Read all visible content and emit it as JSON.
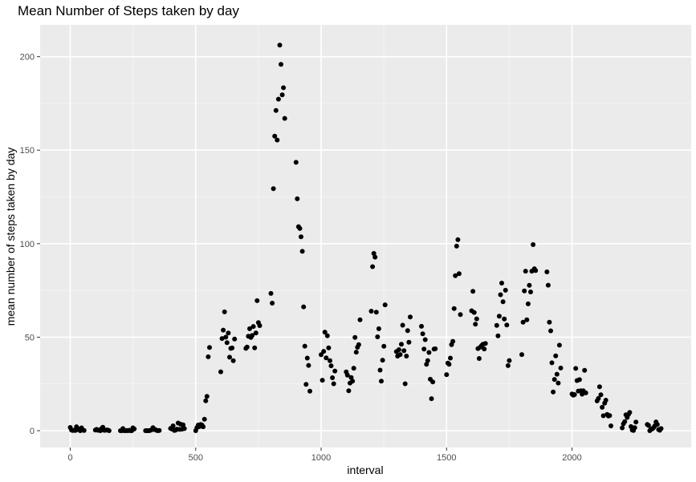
{
  "chart_data": {
    "type": "scatter",
    "title": "Mean Number of Steps taken by day",
    "xlabel": "interval",
    "ylabel": "mean number of steps taken by day",
    "xlim": [
      -120,
      2475
    ],
    "ylim": [
      -9,
      217
    ],
    "x_ticks": [
      0,
      500,
      1000,
      1500,
      2000
    ],
    "y_ticks": [
      0,
      50,
      100,
      150,
      200
    ],
    "x_tick_labels": [
      "0",
      "500",
      "1000",
      "1500",
      "2000"
    ],
    "y_tick_labels": [
      "0",
      "50",
      "100",
      "150",
      "200"
    ],
    "grid": true,
    "panel_color": "#ebebeb",
    "point_color": "#000000",
    "points": [
      [
        0,
        1.7
      ],
      [
        5,
        0.3
      ],
      [
        10,
        0.1
      ],
      [
        15,
        0.2
      ],
      [
        20,
        0.1
      ],
      [
        25,
        2.1
      ],
      [
        30,
        0.5
      ],
      [
        35,
        0.9
      ],
      [
        40,
        0
      ],
      [
        45,
        1.5
      ],
      [
        50,
        0.3
      ],
      [
        55,
        0.1
      ],
      [
        100,
        0.3
      ],
      [
        105,
        0.7
      ],
      [
        110,
        0.2
      ],
      [
        115,
        0.3
      ],
      [
        120,
        0
      ],
      [
        125,
        1.1
      ],
      [
        130,
        1.8
      ],
      [
        135,
        0.2
      ],
      [
        140,
        0.2
      ],
      [
        145,
        0.4
      ],
      [
        150,
        0.3
      ],
      [
        155,
        0
      ],
      [
        200,
        0
      ],
      [
        205,
        0
      ],
      [
        210,
        1.1
      ],
      [
        215,
        0
      ],
      [
        220,
        0
      ],
      [
        225,
        0.1
      ],
      [
        230,
        0
      ],
      [
        235,
        0.2
      ],
      [
        240,
        0
      ],
      [
        245,
        0
      ],
      [
        250,
        1.5
      ],
      [
        255,
        0.9
      ],
      [
        300,
        0
      ],
      [
        305,
        0
      ],
      [
        310,
        0
      ],
      [
        315,
        0
      ],
      [
        320,
        0.2
      ],
      [
        325,
        0.6
      ],
      [
        330,
        1.6
      ],
      [
        335,
        0.6
      ],
      [
        340,
        0.5
      ],
      [
        345,
        0.1
      ],
      [
        350,
        0
      ],
      [
        355,
        0.1
      ],
      [
        400,
        1.2
      ],
      [
        405,
        0.9
      ],
      [
        410,
        2.6
      ],
      [
        415,
        0.1
      ],
      [
        420,
        0.3
      ],
      [
        425,
        0.8
      ],
      [
        430,
        4.1
      ],
      [
        435,
        0.7
      ],
      [
        440,
        3.5
      ],
      [
        445,
        0.8
      ],
      [
        450,
        3.1
      ],
      [
        455,
        1.1
      ],
      [
        500,
        0
      ],
      [
        505,
        1.6
      ],
      [
        510,
        3
      ],
      [
        515,
        2.2
      ],
      [
        520,
        3.3
      ],
      [
        525,
        3
      ],
      [
        530,
        2.1
      ],
      [
        535,
        6.1
      ],
      [
        540,
        16
      ],
      [
        545,
        18.3
      ],
      [
        550,
        39.5
      ],
      [
        555,
        44.5
      ],
      [
        600,
        31.5
      ],
      [
        605,
        49.3
      ],
      [
        610,
        53.8
      ],
      [
        615,
        63.5
      ],
      [
        620,
        50
      ],
      [
        625,
        47.1
      ],
      [
        630,
        52.2
      ],
      [
        635,
        39.3
      ],
      [
        640,
        44
      ],
      [
        645,
        44.2
      ],
      [
        650,
        37.4
      ],
      [
        655,
        49
      ],
      [
        700,
        44
      ],
      [
        705,
        44.7
      ],
      [
        710,
        50.5
      ],
      [
        715,
        54.5
      ],
      [
        720,
        49.9
      ],
      [
        725,
        50.9
      ],
      [
        730,
        55.7
      ],
      [
        735,
        44.3
      ],
      [
        740,
        52.3
      ],
      [
        745,
        69.5
      ],
      [
        750,
        57.8
      ],
      [
        755,
        56.2
      ],
      [
        800,
        73.4
      ],
      [
        805,
        68.2
      ],
      [
        810,
        129.4
      ],
      [
        815,
        157.5
      ],
      [
        820,
        171.2
      ],
      [
        825,
        155.4
      ],
      [
        830,
        177.3
      ],
      [
        835,
        206.2
      ],
      [
        840,
        195.9
      ],
      [
        845,
        179.6
      ],
      [
        850,
        183.4
      ],
      [
        855,
        167
      ],
      [
        900,
        143.5
      ],
      [
        905,
        124
      ],
      [
        910,
        109.1
      ],
      [
        915,
        108.1
      ],
      [
        920,
        103.7
      ],
      [
        925,
        95.9
      ],
      [
        930,
        66.2
      ],
      [
        935,
        45.2
      ],
      [
        940,
        24.8
      ],
      [
        945,
        38.8
      ],
      [
        950,
        34.9
      ],
      [
        955,
        21.1
      ],
      [
        1000,
        40.6
      ],
      [
        1005,
        27
      ],
      [
        1010,
        42.4
      ],
      [
        1015,
        52.7
      ],
      [
        1020,
        38.9
      ],
      [
        1025,
        50.8
      ],
      [
        1030,
        44.3
      ],
      [
        1035,
        37.4
      ],
      [
        1040,
        34.7
      ],
      [
        1045,
        28.3
      ],
      [
        1050,
        25.1
      ],
      [
        1055,
        31.9
      ],
      [
        1100,
        31.4
      ],
      [
        1105,
        29.7
      ],
      [
        1110,
        21.3
      ],
      [
        1115,
        25.5
      ],
      [
        1120,
        28.4
      ],
      [
        1125,
        26.5
      ],
      [
        1130,
        33.4
      ],
      [
        1135,
        49.9
      ],
      [
        1140,
        42
      ],
      [
        1145,
        44.6
      ],
      [
        1150,
        46
      ],
      [
        1155,
        59.3
      ],
      [
        1200,
        63.9
      ],
      [
        1205,
        87.7
      ],
      [
        1210,
        94.8
      ],
      [
        1215,
        92.8
      ],
      [
        1220,
        63.4
      ],
      [
        1225,
        50.2
      ],
      [
        1230,
        54.5
      ],
      [
        1235,
        32.4
      ],
      [
        1240,
        26.5
      ],
      [
        1245,
        37.7
      ],
      [
        1250,
        45.1
      ],
      [
        1255,
        67.3
      ],
      [
        1300,
        42.3
      ],
      [
        1305,
        39.9
      ],
      [
        1310,
        43.3
      ],
      [
        1315,
        40.7
      ],
      [
        1320,
        46.2
      ],
      [
        1325,
        56.4
      ],
      [
        1330,
        42.8
      ],
      [
        1335,
        25.1
      ],
      [
        1340,
        39.9
      ],
      [
        1345,
        53.5
      ],
      [
        1350,
        47.3
      ],
      [
        1355,
        60.8
      ],
      [
        1400,
        55.8
      ],
      [
        1405,
        51.8
      ],
      [
        1410,
        43.6
      ],
      [
        1415,
        48.7
      ],
      [
        1420,
        35.5
      ],
      [
        1425,
        37.5
      ],
      [
        1430,
        41.8
      ],
      [
        1435,
        27.5
      ],
      [
        1440,
        17.1
      ],
      [
        1445,
        26.1
      ],
      [
        1450,
        43.6
      ],
      [
        1455,
        43.8
      ],
      [
        1500,
        30
      ],
      [
        1505,
        36.1
      ],
      [
        1510,
        35.5
      ],
      [
        1515,
        38.8
      ],
      [
        1520,
        45.96
      ],
      [
        1525,
        47.8
      ],
      [
        1530,
        65.3
      ],
      [
        1535,
        82.9
      ],
      [
        1540,
        98.7
      ],
      [
        1545,
        102.1
      ],
      [
        1550,
        83.96
      ],
      [
        1555,
        62.1
      ],
      [
        1600,
        64.1
      ],
      [
        1605,
        74.5
      ],
      [
        1610,
        63.2
      ],
      [
        1615,
        56.9
      ],
      [
        1620,
        59.8
      ],
      [
        1625,
        43.9
      ],
      [
        1630,
        38.6
      ],
      [
        1635,
        44.7
      ],
      [
        1640,
        45.5
      ],
      [
        1645,
        46.2
      ],
      [
        1650,
        43.7
      ],
      [
        1655,
        46.6
      ],
      [
        1700,
        56.3
      ],
      [
        1705,
        50.7
      ],
      [
        1710,
        61.2
      ],
      [
        1715,
        72.7
      ],
      [
        1720,
        78.9
      ],
      [
        1725,
        68.9
      ],
      [
        1730,
        59.7
      ],
      [
        1735,
        75.1
      ],
      [
        1740,
        56.5
      ],
      [
        1745,
        34.8
      ],
      [
        1750,
        37.5
      ],
      [
        1800,
        40.7
      ],
      [
        1805,
        58
      ],
      [
        1810,
        74.7
      ],
      [
        1815,
        85.3
      ],
      [
        1820,
        59.3
      ],
      [
        1825,
        67.8
      ],
      [
        1830,
        77.7
      ],
      [
        1835,
        74.2
      ],
      [
        1840,
        85.3
      ],
      [
        1845,
        99.5
      ],
      [
        1850,
        86.6
      ],
      [
        1855,
        85.6
      ],
      [
        1900,
        84.9
      ],
      [
        1905,
        77.8
      ],
      [
        1910,
        58
      ],
      [
        1915,
        53.4
      ],
      [
        1920,
        36.3
      ],
      [
        1925,
        20.7
      ],
      [
        1930,
        27.4
      ],
      [
        1935,
        40
      ],
      [
        1940,
        30.2
      ],
      [
        1945,
        25.5
      ],
      [
        1950,
        45.7
      ],
      [
        1955,
        33.5
      ],
      [
        2000,
        19.6
      ],
      [
        2005,
        19
      ],
      [
        2010,
        19.3
      ],
      [
        2015,
        33.3
      ],
      [
        2020,
        26.8
      ],
      [
        2025,
        21.2
      ],
      [
        2030,
        27.3
      ],
      [
        2035,
        21.3
      ],
      [
        2040,
        19.5
      ],
      [
        2045,
        21.3
      ],
      [
        2050,
        32.3
      ],
      [
        2055,
        20.2
      ],
      [
        2100,
        15.9
      ],
      [
        2105,
        17.2
      ],
      [
        2110,
        23.5
      ],
      [
        2115,
        19.2
      ],
      [
        2120,
        12.5
      ],
      [
        2125,
        8
      ],
      [
        2130,
        14.7
      ],
      [
        2135,
        16.3
      ],
      [
        2140,
        8.7
      ],
      [
        2145,
        7.8
      ],
      [
        2150,
        8.1
      ],
      [
        2155,
        2.6
      ],
      [
        2200,
        1.5
      ],
      [
        2205,
        3.7
      ],
      [
        2210,
        4.8
      ],
      [
        2215,
        8.5
      ],
      [
        2220,
        7.1
      ],
      [
        2225,
        8.7
      ],
      [
        2230,
        9.8
      ],
      [
        2235,
        2.2
      ],
      [
        2240,
        0.3
      ],
      [
        2245,
        0.1
      ],
      [
        2250,
        1.6
      ],
      [
        2255,
        4.6
      ],
      [
        2300,
        3.3
      ],
      [
        2305,
        2.8
      ],
      [
        2310,
        0
      ],
      [
        2315,
        0.8
      ],
      [
        2320,
        1
      ],
      [
        2325,
        1.6
      ],
      [
        2330,
        2.6
      ],
      [
        2335,
        4.7
      ],
      [
        2340,
        3.3
      ],
      [
        2345,
        0.6
      ],
      [
        2350,
        0.2
      ],
      [
        2355,
        1.1
      ]
    ]
  }
}
